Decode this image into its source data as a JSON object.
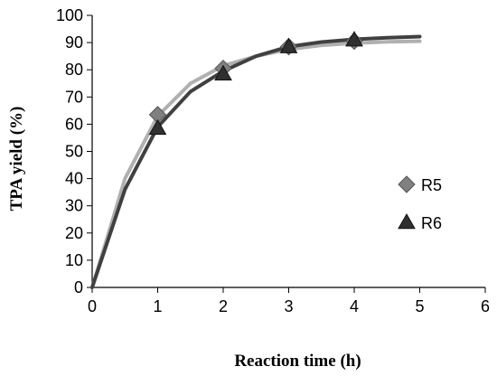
{
  "chart_data": {
    "type": "line",
    "title": "",
    "xlabel": "Reaction time (h)",
    "ylabel": "TPA yield (%)",
    "xlim": [
      0,
      6
    ],
    "ylim": [
      0,
      100
    ],
    "xticks": [
      0,
      1,
      2,
      3,
      4,
      5,
      6
    ],
    "yticks": [
      0,
      10,
      20,
      30,
      40,
      50,
      60,
      70,
      80,
      90,
      100
    ],
    "grid": false,
    "legend_position": "right",
    "series": [
      {
        "name": "R5",
        "marker": "diamond",
        "color": "#b0b0b0",
        "marker_color": "#808080",
        "curve": [
          [
            0,
            0
          ],
          [
            0.5,
            40
          ],
          [
            1,
            63
          ],
          [
            1.5,
            75
          ],
          [
            2,
            81.5
          ],
          [
            2.5,
            85
          ],
          [
            3,
            87.5
          ],
          [
            3.5,
            89
          ],
          [
            4,
            89.8
          ],
          [
            4.5,
            90.3
          ],
          [
            5,
            90.5
          ]
        ],
        "markers": [
          [
            1,
            63.5
          ],
          [
            2,
            80.5
          ],
          [
            3,
            88.5
          ],
          [
            4,
            90.5
          ]
        ]
      },
      {
        "name": "R6",
        "marker": "triangle",
        "color": "#404040",
        "marker_color": "#303030",
        "curve": [
          [
            0,
            0
          ],
          [
            0.5,
            36
          ],
          [
            1,
            59
          ],
          [
            1.5,
            72
          ],
          [
            2,
            79.5
          ],
          [
            2.5,
            85
          ],
          [
            3,
            88.5
          ],
          [
            3.5,
            90.2
          ],
          [
            4,
            91.2
          ],
          [
            4.5,
            91.8
          ],
          [
            5,
            92.2
          ]
        ],
        "markers": [
          [
            1,
            58.5
          ],
          [
            2,
            78.5
          ],
          [
            3,
            88.5
          ],
          [
            4,
            91
          ]
        ]
      }
    ]
  }
}
